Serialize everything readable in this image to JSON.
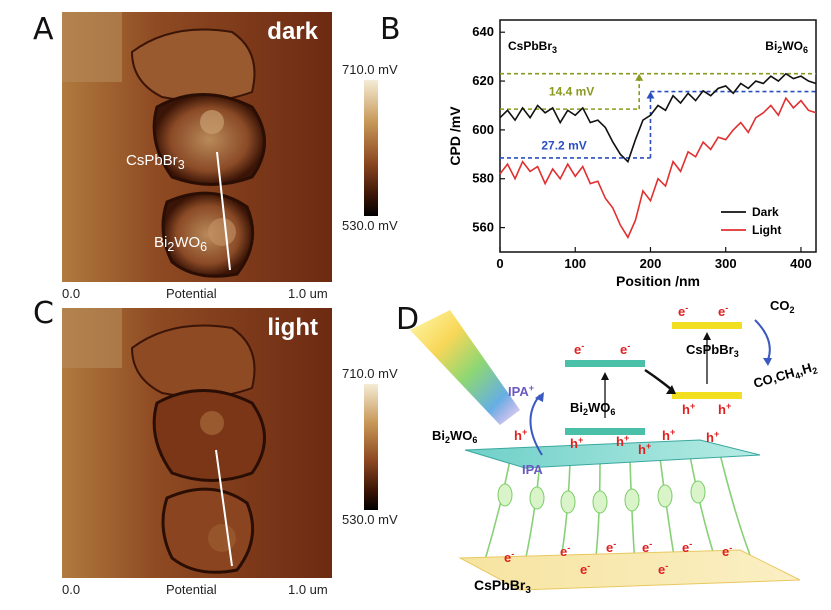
{
  "panels": {
    "A": {
      "letter": "A",
      "title": "dark",
      "label_top": "CsPbBr3",
      "label_bottom": "Bi2WO6",
      "scale_left": "0.0",
      "scale_center": "Potential",
      "scale_right": "1.0 um",
      "cb_top": "710.0 mV",
      "cb_bottom": "530.0 mV"
    },
    "C": {
      "letter": "C",
      "title": "light",
      "scale_left": "0.0",
      "scale_center": "Potential",
      "scale_right": "1.0 um",
      "cb_top": "710.0 mV",
      "cb_bottom": "530.0 mV"
    },
    "B": {
      "letter": "B"
    },
    "D": {
      "letter": "D"
    }
  },
  "chart_data": {
    "type": "line",
    "xlabel": "Position /nm",
    "ylabel": "CPD /mV",
    "xlim": [
      0,
      420
    ],
    "ylim": [
      550,
      645
    ],
    "xticks": [
      0,
      100,
      200,
      300,
      400
    ],
    "yticks": [
      560,
      580,
      600,
      620,
      640
    ],
    "legend_position": "bottom-right",
    "region_labels": {
      "left": "CsPbBr3",
      "right": "Bi2WO6"
    },
    "annotations": [
      {
        "text": "14.4 mV",
        "color": "#8a9a1e"
      },
      {
        "text": "27.2 mV",
        "color": "#2a4fc0"
      }
    ],
    "reference_lines": {
      "dark_low": 608.5,
      "dark_high": 623.0,
      "light_low": 588.5,
      "light_high": 615.7,
      "dark_arrow_x": 185,
      "light_arrow_x": 200
    },
    "series": [
      {
        "name": "Dark",
        "color": "#111111",
        "x": [
          0,
          10,
          20,
          30,
          40,
          50,
          60,
          70,
          80,
          90,
          100,
          110,
          120,
          130,
          140,
          150,
          160,
          170,
          180,
          190,
          200,
          210,
          220,
          230,
          240,
          250,
          260,
          270,
          280,
          290,
          300,
          310,
          320,
          330,
          340,
          350,
          360,
          370,
          380,
          390,
          400,
          410,
          420
        ],
        "y": [
          605,
          608,
          604,
          609,
          605,
          610,
          607,
          609,
          603,
          608,
          606,
          609,
          603,
          604,
          601,
          595,
          590,
          587,
          596,
          604,
          606,
          610,
          608,
          614,
          611,
          615,
          612,
          616,
          614,
          617,
          618,
          615,
          619,
          617,
          620,
          619,
          622,
          620,
          623,
          621,
          622,
          620,
          619
        ]
      },
      {
        "name": "Light",
        "color": "#e03030",
        "x": [
          0,
          10,
          20,
          30,
          40,
          50,
          60,
          70,
          80,
          90,
          100,
          110,
          120,
          130,
          140,
          150,
          160,
          170,
          180,
          190,
          200,
          210,
          220,
          230,
          240,
          250,
          260,
          270,
          280,
          290,
          300,
          310,
          320,
          330,
          340,
          350,
          360,
          370,
          380,
          390,
          400,
          410,
          420
        ],
        "y": [
          582,
          586,
          580,
          587,
          583,
          585,
          578,
          584,
          580,
          586,
          581,
          585,
          578,
          579,
          572,
          568,
          561,
          556,
          563,
          575,
          571,
          580,
          577,
          587,
          583,
          591,
          589,
          595,
          592,
          597,
          596,
          600,
          603,
          599,
          605,
          607,
          610,
          606,
          613,
          609,
          612,
          608,
          607
        ]
      }
    ]
  },
  "diagram": {
    "CO2": "CO2",
    "products": "CO,CH4,H2",
    "top_material": "CsPbBr3",
    "mid_material": "Bi2WO6",
    "left_material": "Bi2WO6",
    "bottom_material": "CsPbBr3",
    "ipa_plus": "IPA+",
    "ipa": "IPA",
    "electron": "e-",
    "hole": "h+"
  }
}
